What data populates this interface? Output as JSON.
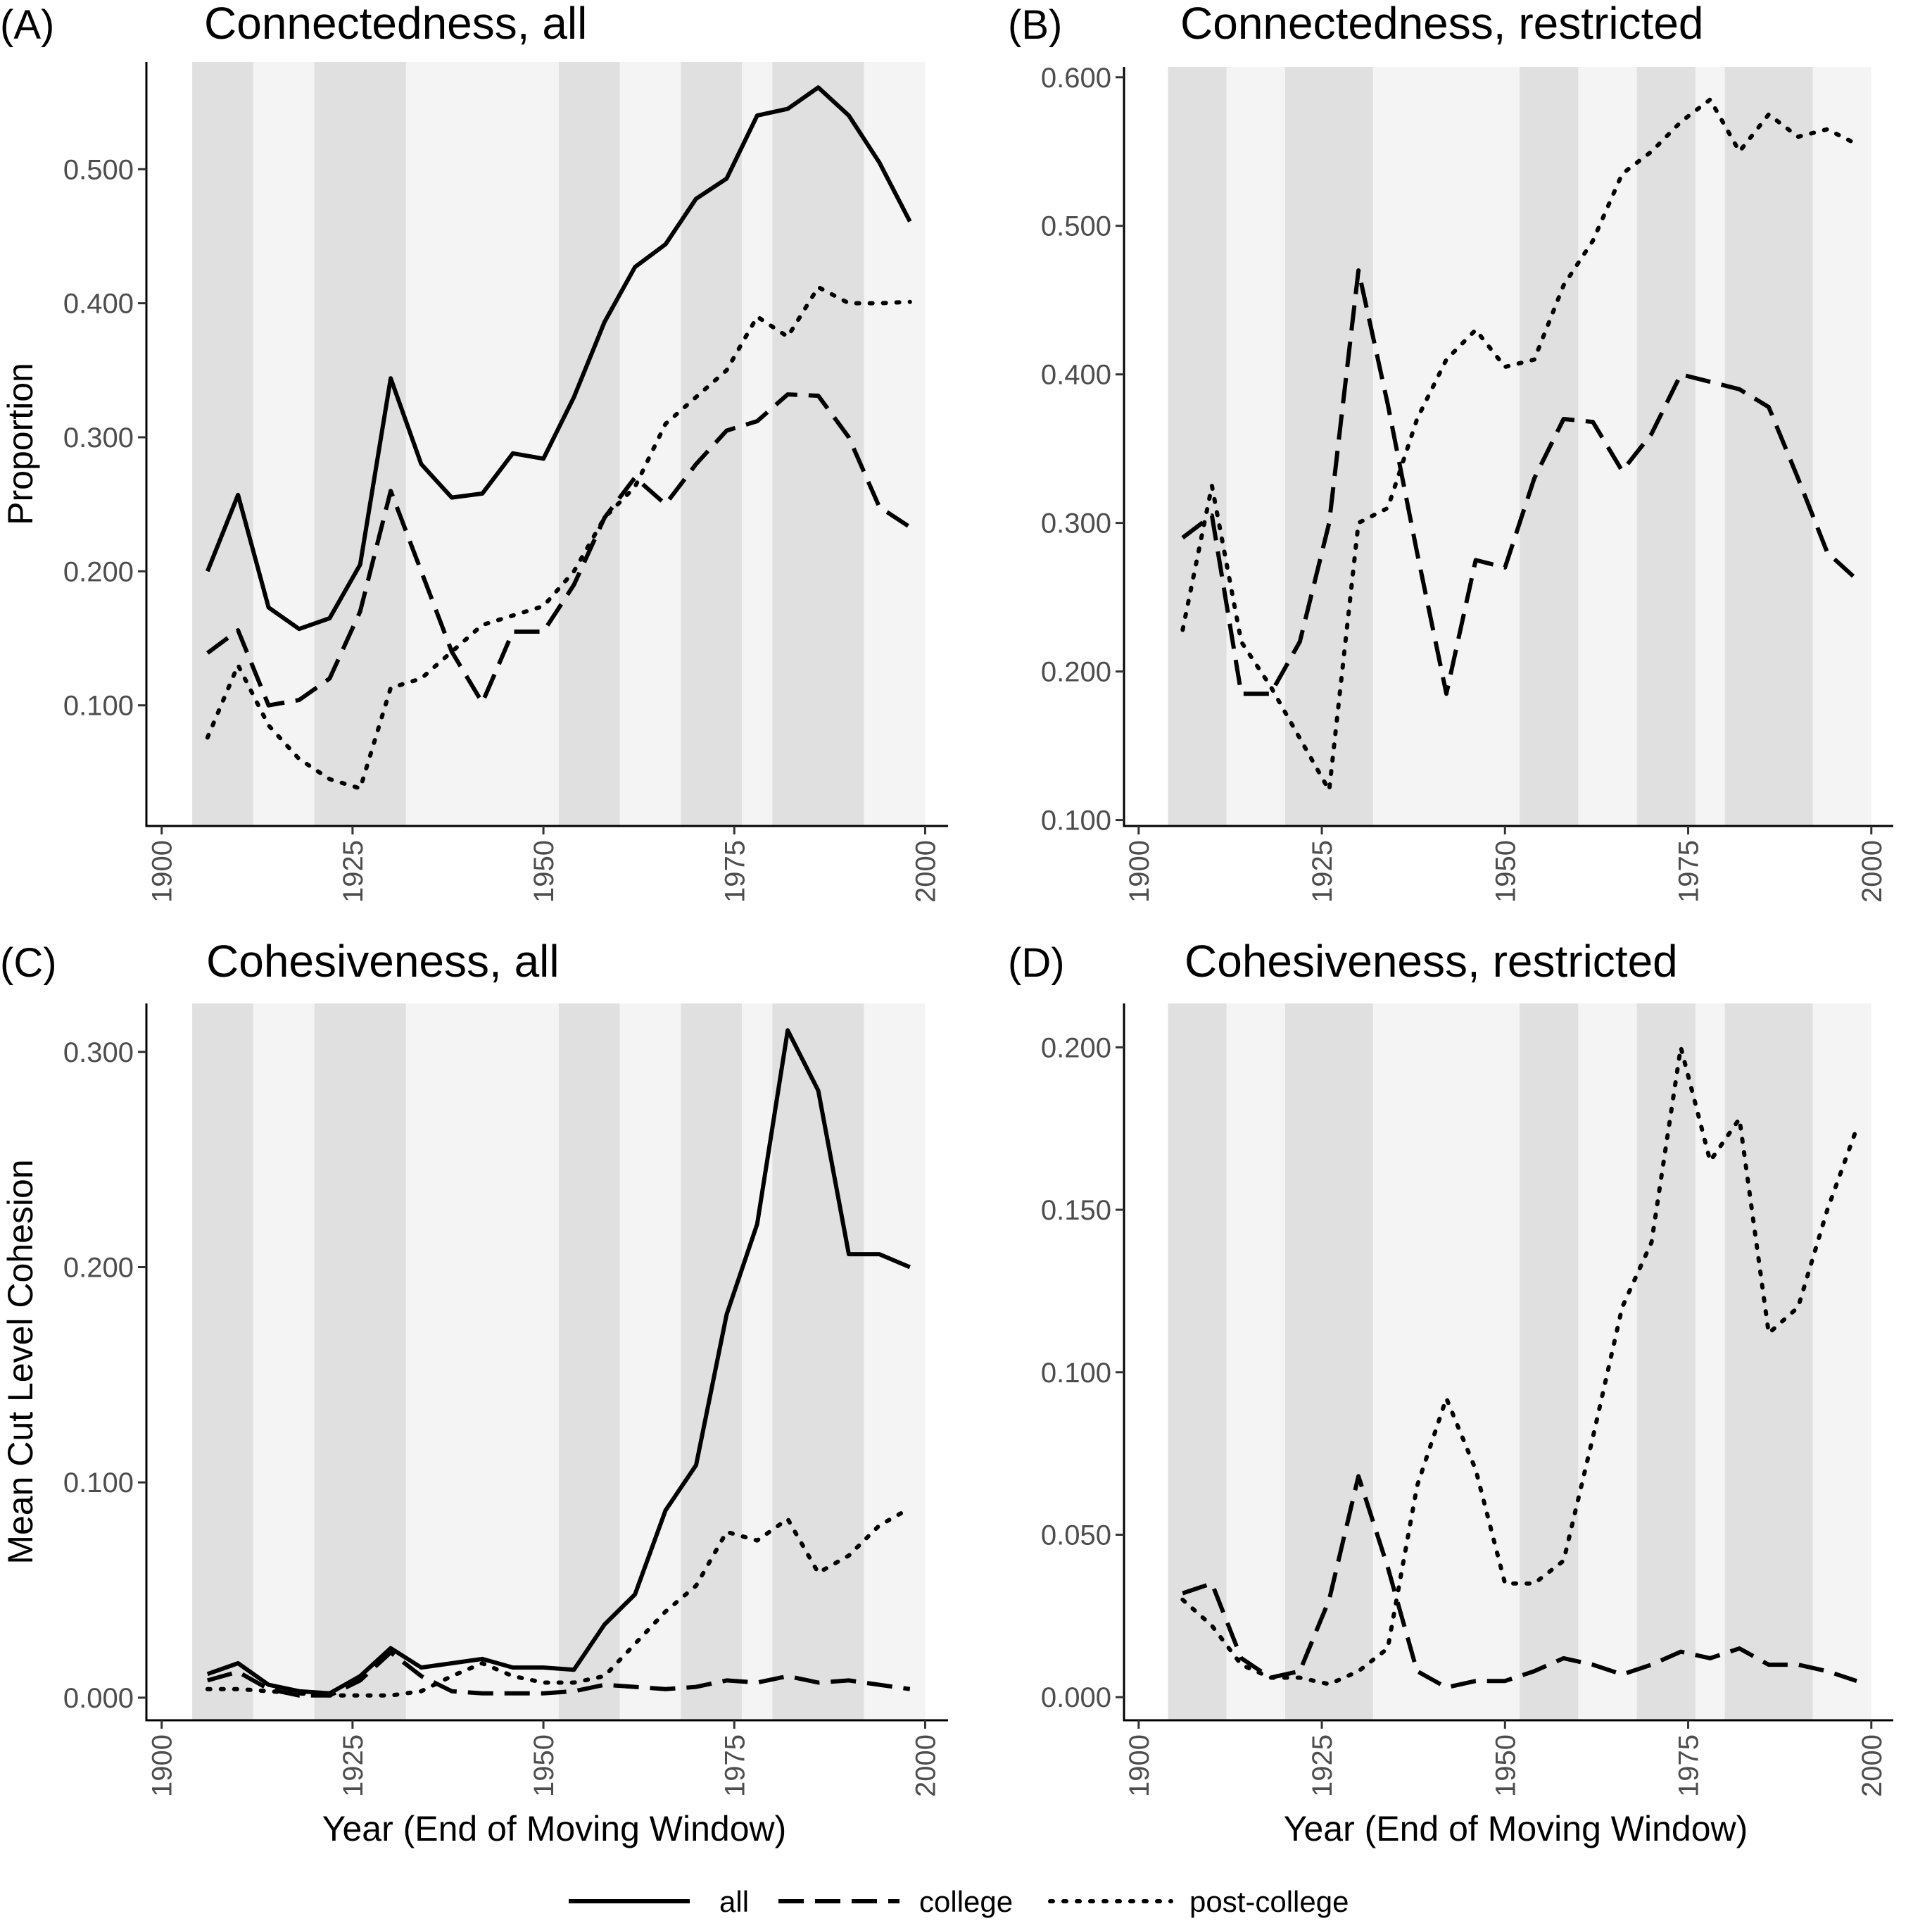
{
  "chart_data": [
    {
      "panel": "(A)",
      "title": "Connectedness, all",
      "type": "line",
      "ylabel": "Proportion",
      "xlabel": "",
      "xlim": [
        1898,
        2003
      ],
      "ylim": [
        0.01,
        0.58
      ],
      "xticks": [
        1900,
        1925,
        1950,
        1975,
        2000
      ],
      "xtick_labels": [
        "1900",
        "1925",
        "1950",
        "1975",
        "2000"
      ],
      "yticks": [
        0.1,
        0.2,
        0.3,
        0.4,
        0.5
      ],
      "ytick_labels": [
        "0.100",
        "0.200",
        "0.300",
        "0.400",
        "0.500"
      ],
      "shading": [
        [
          1904,
          1912,
          "dark"
        ],
        [
          1912,
          1920,
          "light"
        ],
        [
          1920,
          1932,
          "dark"
        ],
        [
          1932,
          1952,
          "light"
        ],
        [
          1952,
          1960,
          "dark"
        ],
        [
          1960,
          1968,
          "light"
        ],
        [
          1968,
          1976,
          "dark"
        ],
        [
          1976,
          1980,
          "light"
        ],
        [
          1980,
          1992,
          "dark"
        ],
        [
          1992,
          2000,
          "light"
        ]
      ],
      "series": [
        {
          "name": "all",
          "style": "solid",
          "x": [
            1906,
            1910,
            1914,
            1918,
            1922,
            1926,
            1930,
            1934,
            1938,
            1942,
            1946,
            1950,
            1954,
            1958,
            1962,
            1966,
            1970,
            1974,
            1978,
            1982,
            1986,
            1990,
            1994,
            1998
          ],
          "values": [
            0.2,
            0.257,
            0.173,
            0.157,
            0.165,
            0.205,
            0.344,
            0.28,
            0.255,
            0.258,
            0.288,
            0.284,
            0.33,
            0.386,
            0.427,
            0.444,
            0.478,
            0.493,
            0.54,
            0.545,
            0.561,
            0.54,
            0.505,
            0.461
          ]
        },
        {
          "name": "college",
          "style": "dashed",
          "x": [
            1906,
            1910,
            1914,
            1918,
            1922,
            1926,
            1930,
            1934,
            1938,
            1942,
            1946,
            1950,
            1954,
            1958,
            1962,
            1966,
            1970,
            1974,
            1978,
            1982,
            1986,
            1990,
            1994,
            1998
          ],
          "values": [
            0.139,
            0.156,
            0.1,
            0.104,
            0.12,
            0.17,
            0.26,
            0.2,
            0.14,
            0.102,
            0.155,
            0.155,
            0.19,
            0.24,
            0.27,
            0.25,
            0.28,
            0.305,
            0.312,
            0.332,
            0.331,
            0.3,
            0.248,
            0.233
          ]
        },
        {
          "name": "post-college",
          "style": "dotted",
          "x": [
            1906,
            1910,
            1914,
            1918,
            1922,
            1926,
            1930,
            1934,
            1938,
            1942,
            1946,
            1950,
            1954,
            1958,
            1962,
            1966,
            1970,
            1974,
            1978,
            1982,
            1986,
            1990,
            1994,
            1998
          ],
          "values": [
            0.076,
            0.13,
            0.085,
            0.06,
            0.045,
            0.038,
            0.113,
            0.12,
            0.14,
            0.16,
            0.167,
            0.174,
            0.2,
            0.24,
            0.263,
            0.31,
            0.33,
            0.35,
            0.39,
            0.375,
            0.412,
            0.4,
            0.4,
            0.401
          ]
        }
      ]
    },
    {
      "panel": "(B)",
      "title": "Connectedness, restricted",
      "type": "line",
      "ylabel": "",
      "xlabel": "",
      "xlim": [
        1898,
        2003
      ],
      "ylim": [
        0.096,
        0.607
      ],
      "xticks": [
        1900,
        1925,
        1950,
        1975,
        2000
      ],
      "xtick_labels": [
        "1900",
        "1925",
        "1950",
        "1975",
        "2000"
      ],
      "yticks": [
        0.1,
        0.2,
        0.3,
        0.4,
        0.5,
        0.6
      ],
      "ytick_labels": [
        "0.100",
        "0.200",
        "0.300",
        "0.400",
        "0.500",
        "0.600"
      ],
      "shading": [
        [
          1904,
          1912,
          "dark"
        ],
        [
          1912,
          1920,
          "light"
        ],
        [
          1920,
          1932,
          "dark"
        ],
        [
          1932,
          1952,
          "light"
        ],
        [
          1952,
          1960,
          "dark"
        ],
        [
          1960,
          1968,
          "light"
        ],
        [
          1968,
          1976,
          "dark"
        ],
        [
          1976,
          1980,
          "light"
        ],
        [
          1980,
          1992,
          "dark"
        ],
        [
          1992,
          2000,
          "light"
        ]
      ],
      "series": [
        {
          "name": "college",
          "style": "dashed",
          "x": [
            1906,
            1910,
            1914,
            1918,
            1922,
            1926,
            1930,
            1934,
            1938,
            1942,
            1946,
            1950,
            1954,
            1958,
            1962,
            1966,
            1970,
            1974,
            1978,
            1982,
            1986,
            1990,
            1994,
            1998
          ],
          "values": [
            0.29,
            0.305,
            0.185,
            0.185,
            0.22,
            0.3,
            0.47,
            0.38,
            0.28,
            0.185,
            0.275,
            0.27,
            0.33,
            0.37,
            0.368,
            0.335,
            0.36,
            0.4,
            0.395,
            0.39,
            0.378,
            0.33,
            0.28,
            0.262
          ]
        },
        {
          "name": "post-college",
          "style": "dotted",
          "x": [
            1906,
            1910,
            1914,
            1918,
            1922,
            1926,
            1930,
            1934,
            1938,
            1942,
            1946,
            1950,
            1954,
            1958,
            1962,
            1966,
            1970,
            1974,
            1978,
            1982,
            1986,
            1990,
            1994,
            1998
          ],
          "values": [
            0.228,
            0.325,
            0.22,
            0.19,
            0.155,
            0.12,
            0.3,
            0.31,
            0.37,
            0.41,
            0.43,
            0.405,
            0.41,
            0.46,
            0.49,
            0.535,
            0.55,
            0.57,
            0.585,
            0.55,
            0.575,
            0.56,
            0.565,
            0.555
          ]
        }
      ]
    },
    {
      "panel": "(C)",
      "title": "Cohesiveness, all",
      "type": "line",
      "ylabel": "Mean Cut Level Cohesion",
      "xlabel": "Year (End of Moving Window)",
      "xlim": [
        1898,
        2003
      ],
      "ylim": [
        -0.0105,
        0.3225
      ],
      "xticks": [
        1900,
        1925,
        1950,
        1975,
        2000
      ],
      "xtick_labels": [
        "1900",
        "1925",
        "1950",
        "1975",
        "2000"
      ],
      "yticks": [
        0.0,
        0.1,
        0.2,
        0.3
      ],
      "ytick_labels": [
        "0.000",
        "0.100",
        "0.200",
        "0.300"
      ],
      "shading": [
        [
          1904,
          1912,
          "dark"
        ],
        [
          1912,
          1920,
          "light"
        ],
        [
          1920,
          1932,
          "dark"
        ],
        [
          1932,
          1952,
          "light"
        ],
        [
          1952,
          1960,
          "dark"
        ],
        [
          1960,
          1968,
          "light"
        ],
        [
          1968,
          1976,
          "dark"
        ],
        [
          1976,
          1980,
          "light"
        ],
        [
          1980,
          1992,
          "dark"
        ],
        [
          1992,
          2000,
          "light"
        ]
      ],
      "series": [
        {
          "name": "all",
          "style": "solid",
          "x": [
            1906,
            1910,
            1914,
            1918,
            1922,
            1926,
            1930,
            1934,
            1938,
            1942,
            1946,
            1950,
            1954,
            1958,
            1962,
            1966,
            1970,
            1974,
            1978,
            1982,
            1986,
            1990,
            1994,
            1998
          ],
          "values": [
            0.011,
            0.016,
            0.006,
            0.003,
            0.002,
            0.01,
            0.023,
            0.014,
            0.016,
            0.018,
            0.014,
            0.014,
            0.013,
            0.034,
            0.048,
            0.087,
            0.108,
            0.178,
            0.22,
            0.31,
            0.282,
            0.206,
            0.206,
            0.2
          ]
        },
        {
          "name": "college",
          "style": "dashed",
          "x": [
            1906,
            1910,
            1914,
            1918,
            1922,
            1926,
            1930,
            1934,
            1938,
            1942,
            1946,
            1950,
            1954,
            1958,
            1962,
            1966,
            1970,
            1974,
            1978,
            1982,
            1986,
            1990,
            1994,
            1998
          ],
          "values": [
            0.008,
            0.012,
            0.004,
            0.001,
            0.001,
            0.008,
            0.021,
            0.01,
            0.003,
            0.002,
            0.002,
            0.002,
            0.003,
            0.006,
            0.005,
            0.004,
            0.005,
            0.008,
            0.007,
            0.01,
            0.007,
            0.008,
            0.006,
            0.004
          ]
        },
        {
          "name": "post-college",
          "style": "dotted",
          "x": [
            1906,
            1910,
            1914,
            1918,
            1922,
            1926,
            1930,
            1934,
            1938,
            1942,
            1946,
            1950,
            1954,
            1958,
            1962,
            1966,
            1970,
            1974,
            1978,
            1982,
            1986,
            1990,
            1994,
            1998
          ],
          "values": [
            0.004,
            0.004,
            0.003,
            0.002,
            0.001,
            0.001,
            0.001,
            0.003,
            0.01,
            0.016,
            0.01,
            0.007,
            0.007,
            0.01,
            0.025,
            0.04,
            0.052,
            0.077,
            0.073,
            0.083,
            0.058,
            0.066,
            0.08,
            0.088
          ]
        }
      ]
    },
    {
      "panel": "(D)",
      "title": "Cohesiveness, restricted",
      "type": "line",
      "ylabel": "",
      "xlabel": "Year (End of Moving Window)",
      "xlim": [
        1898,
        2003
      ],
      "ylim": [
        -0.0071,
        0.2135
      ],
      "xticks": [
        1900,
        1925,
        1950,
        1975,
        2000
      ],
      "xtick_labels": [
        "1900",
        "1925",
        "1950",
        "1975",
        "2000"
      ],
      "yticks": [
        0.0,
        0.05,
        0.1,
        0.15,
        0.2
      ],
      "ytick_labels": [
        "0.000",
        "0.050",
        "0.100",
        "0.150",
        "0.200"
      ],
      "shading": [
        [
          1904,
          1912,
          "dark"
        ],
        [
          1912,
          1920,
          "light"
        ],
        [
          1920,
          1932,
          "dark"
        ],
        [
          1932,
          1952,
          "light"
        ],
        [
          1952,
          1960,
          "dark"
        ],
        [
          1960,
          1968,
          "light"
        ],
        [
          1968,
          1976,
          "dark"
        ],
        [
          1976,
          1980,
          "light"
        ],
        [
          1980,
          1992,
          "dark"
        ],
        [
          1992,
          2000,
          "light"
        ]
      ],
      "series": [
        {
          "name": "college",
          "style": "dashed",
          "x": [
            1906,
            1910,
            1914,
            1918,
            1922,
            1926,
            1930,
            1934,
            1938,
            1942,
            1946,
            1950,
            1954,
            1958,
            1962,
            1966,
            1970,
            1974,
            1978,
            1982,
            1986,
            1990,
            1994,
            1998
          ],
          "values": [
            0.032,
            0.035,
            0.012,
            0.006,
            0.008,
            0.03,
            0.068,
            0.04,
            0.008,
            0.003,
            0.005,
            0.005,
            0.008,
            0.012,
            0.01,
            0.007,
            0.01,
            0.014,
            0.012,
            0.015,
            0.01,
            0.01,
            0.008,
            0.005
          ]
        },
        {
          "name": "post-college",
          "style": "dotted",
          "x": [
            1906,
            1910,
            1914,
            1918,
            1922,
            1926,
            1930,
            1934,
            1938,
            1942,
            1946,
            1950,
            1954,
            1958,
            1962,
            1966,
            1970,
            1974,
            1978,
            1982,
            1986,
            1990,
            1994,
            1998
          ],
          "values": [
            0.03,
            0.022,
            0.01,
            0.006,
            0.006,
            0.004,
            0.008,
            0.015,
            0.065,
            0.092,
            0.07,
            0.035,
            0.035,
            0.042,
            0.08,
            0.12,
            0.14,
            0.2,
            0.165,
            0.178,
            0.112,
            0.12,
            0.15,
            0.175
          ]
        }
      ]
    }
  ],
  "legend": {
    "position": "bottom",
    "items": [
      {
        "label": "all",
        "style": "solid"
      },
      {
        "label": "college",
        "style": "dashed"
      },
      {
        "label": "post-college",
        "style": "dotted"
      }
    ]
  },
  "colors": {
    "shade_dark": "#e0e0e0",
    "shade_light": "#f4f4f4",
    "line": "#000000",
    "tick_text": "#4d4d4d"
  }
}
